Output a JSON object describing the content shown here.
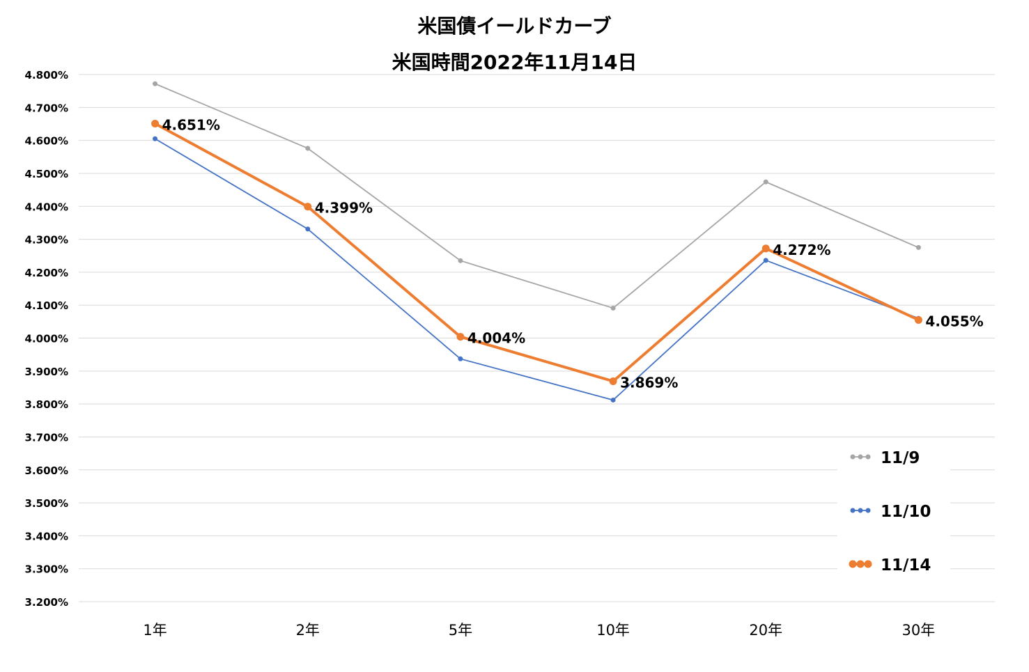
{
  "chart_data": {
    "type": "line",
    "title": "米国債イールドカーブ",
    "subtitle": "米国時間2022年11月14日",
    "categories": [
      "1年",
      "2年",
      "5年",
      "10年",
      "20年",
      "30年"
    ],
    "y_ticks": [
      "4.800%",
      "4.700%",
      "4.600%",
      "4.500%",
      "4.400%",
      "4.300%",
      "4.200%",
      "4.100%",
      "4.000%",
      "3.900%",
      "3.800%",
      "3.700%",
      "3.600%",
      "3.500%",
      "3.400%",
      "3.300%",
      "3.200%"
    ],
    "ylim": [
      3.2,
      4.8
    ],
    "grid": true,
    "legend_position": "bottom-right",
    "series": [
      {
        "name": "11/9",
        "color": "#a5a5a5",
        "values": [
          4.772,
          4.576,
          4.235,
          4.091,
          4.474,
          4.275
        ],
        "labels": null
      },
      {
        "name": "11/10",
        "color": "#4472c4",
        "values": [
          4.605,
          4.331,
          3.937,
          3.812,
          4.236,
          4.06
        ],
        "labels": null
      },
      {
        "name": "11/14",
        "color": "#ed7d31",
        "values": [
          4.651,
          4.399,
          4.004,
          3.869,
          4.272,
          4.055
        ],
        "labels": [
          "4.651%",
          "4.399%",
          "4.004%",
          "3.869%",
          "4.272%",
          "4.055%"
        ]
      }
    ]
  }
}
